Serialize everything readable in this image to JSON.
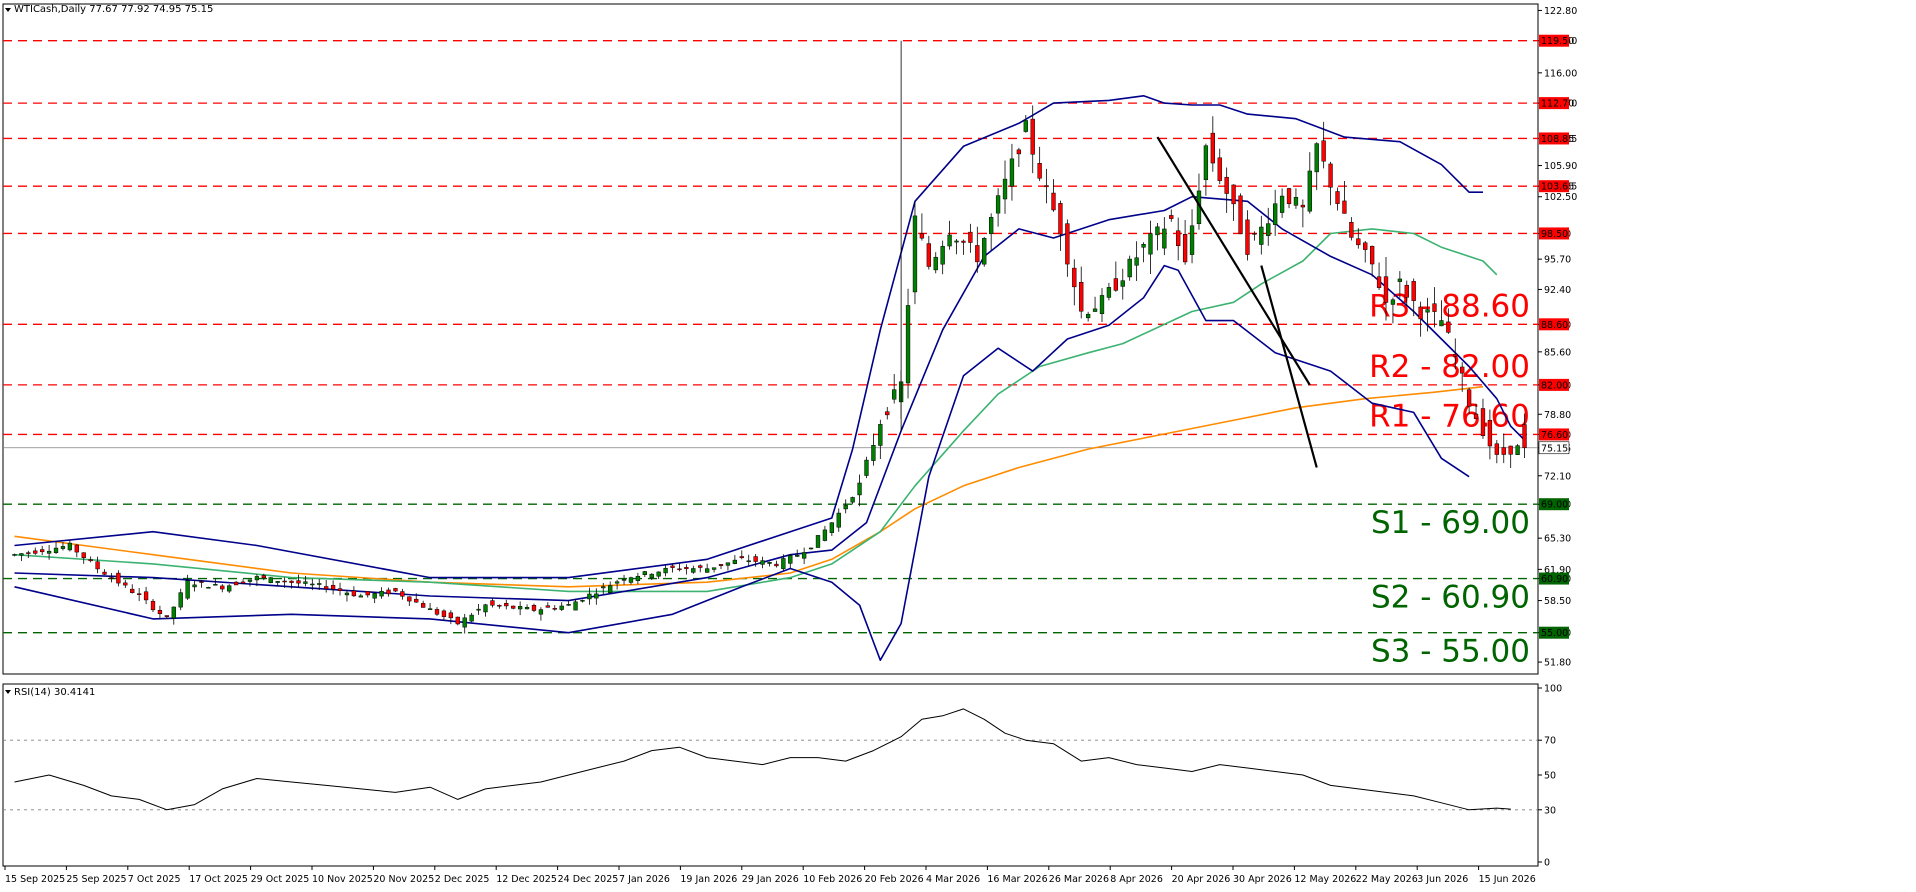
{
  "header": {
    "symbol": "WTICash,Daily",
    "ohlc": "77.67 77.92 74.95 75.15"
  },
  "rsi_header": "RSI(14) 30.4141",
  "colors": {
    "resistance": "#ff0000",
    "support": "#006400",
    "bollinger": "#00008b",
    "ma_green": "#3cb371",
    "ma_orange": "#ff8c00",
    "trendline": "#000000",
    "bull_candle": "#008000",
    "bear_candle": "#ff0000",
    "rsi_line": "#000000",
    "price_line": "#808080"
  },
  "chart_data": [
    {
      "type": "candlestick",
      "symbol": "WTICash",
      "timeframe": "Daily",
      "ylim": [
        50.5,
        123.5
      ],
      "y_ticks": [
        "122.80",
        "119.50",
        "116.00",
        "112.70",
        "108.85",
        "105.90",
        "103.65",
        "102.50",
        "98.50",
        "95.70",
        "92.40",
        "88.60",
        "85.60",
        "82.00",
        "78.80",
        "76.60",
        "75.15",
        "72.10",
        "69.00",
        "65.30",
        "61.90",
        "60.90",
        "58.50",
        "55.00",
        "51.80"
      ],
      "x_labels": [
        "15 Sep 2025",
        "25 Sep 2025",
        "7 Oct 2025",
        "17 Oct 2025",
        "29 Oct 2025",
        "10 Nov 2025",
        "20 Nov 2025",
        "2 Dec 2025",
        "12 Dec 2025",
        "24 Dec 2025",
        "7 Jan 2026",
        "19 Jan 2026",
        "29 Jan 2026",
        "10 Feb 2026",
        "20 Feb 2026",
        "4 Mar 2026",
        "16 Mar 2026",
        "26 Mar 2026",
        "8 Apr 2026",
        "20 Apr 2026",
        "30 Apr 2026",
        "12 May 2026",
        "22 May 2026",
        "3 Jun 2026",
        "15 Jun 2026"
      ],
      "last_price": "75.15",
      "levels": [
        {
          "name": "R3",
          "value": 88.6,
          "label": "R3 - 88.60",
          "tag": "88.60",
          "kind": "resistance"
        },
        {
          "name": "R2",
          "value": 82.0,
          "label": "R2 - 82.00",
          "tag": "82.00",
          "kind": "resistance"
        },
        {
          "name": "R1",
          "value": 76.6,
          "label": "R1 - 76.60",
          "tag": "76.60",
          "kind": "resistance"
        },
        {
          "name": "S1",
          "value": 69.0,
          "label": "S1 - 69.00",
          "tag": "69.00",
          "kind": "support"
        },
        {
          "name": "S2",
          "value": 60.9,
          "label": "S2 - 60.90",
          "tag": "60.90",
          "kind": "support"
        },
        {
          "name": "S3",
          "value": 55.0,
          "label": "S3 - 55.00",
          "tag": "55.00",
          "kind": "support"
        }
      ],
      "extra_levels": [
        {
          "value": 119.5,
          "tag": "119.50",
          "kind": "resistance"
        },
        {
          "value": 112.7,
          "tag": "112.70",
          "kind": "resistance"
        },
        {
          "value": 108.85,
          "tag": "108.85",
          "kind": "resistance"
        },
        {
          "value": 103.65,
          "tag": "103.65",
          "kind": "resistance"
        },
        {
          "value": 98.5,
          "tag": "98.50",
          "kind": "resistance"
        }
      ],
      "close_path": [
        [
          0,
          63.5
        ],
        [
          8,
          64.5
        ],
        [
          12,
          62.0
        ],
        [
          18,
          59.0
        ],
        [
          22,
          56.5
        ],
        [
          25,
          60.5
        ],
        [
          30,
          60.0
        ],
        [
          35,
          61.0
        ],
        [
          45,
          60.0
        ],
        [
          50,
          59.0
        ],
        [
          55,
          59.5
        ],
        [
          60,
          57.5
        ],
        [
          64,
          56.0
        ],
        [
          68,
          58.0
        ],
        [
          75,
          57.5
        ],
        [
          80,
          58.0
        ],
        [
          84,
          59.5
        ],
        [
          88,
          61.0
        ],
        [
          95,
          62.0
        ],
        [
          100,
          62.0
        ],
        [
          105,
          63.0
        ],
        [
          110,
          62.5
        ],
        [
          113,
          63.5
        ],
        [
          115,
          64.5
        ],
        [
          118,
          67.0
        ],
        [
          122,
          71.0
        ],
        [
          125,
          78.0
        ],
        [
          128,
          82.0
        ],
        [
          130,
          100.0
        ],
        [
          132,
          95.0
        ],
        [
          135,
          99.0
        ],
        [
          139,
          96.0
        ],
        [
          143,
          104.0
        ],
        [
          146,
          110.0
        ],
        [
          148,
          105.0
        ],
        [
          151,
          99.0
        ],
        [
          154,
          90.0
        ],
        [
          157,
          91.0
        ],
        [
          160,
          94.0
        ],
        [
          163,
          97.0
        ],
        [
          167,
          100.0
        ],
        [
          169,
          95.0
        ],
        [
          172,
          108.0
        ],
        [
          175,
          103.0
        ],
        [
          178,
          97.0
        ],
        [
          180,
          99.0
        ],
        [
          183,
          103.0
        ],
        [
          186,
          101.0
        ],
        [
          188,
          108.0
        ],
        [
          190,
          104.0
        ],
        [
          193,
          98.0
        ],
        [
          196,
          95.0
        ],
        [
          198,
          91.0
        ],
        [
          200,
          93.0
        ],
        [
          203,
          90.0
        ],
        [
          206,
          89.0
        ],
        [
          208,
          85.0
        ],
        [
          210,
          80.0
        ],
        [
          212,
          77.0
        ],
        [
          214,
          74.0
        ],
        [
          216,
          75.0
        ],
        [
          218,
          75.15
        ]
      ],
      "candle_count": 219,
      "bollinger_upper": [
        [
          0,
          64.5
        ],
        [
          20,
          66.0
        ],
        [
          35,
          64.5
        ],
        [
          60,
          61.0
        ],
        [
          80,
          61.0
        ],
        [
          100,
          63.0
        ],
        [
          112,
          66.0
        ],
        [
          118,
          67.5
        ],
        [
          121,
          75.0
        ],
        [
          125,
          88.0
        ],
        [
          130,
          102.0
        ],
        [
          137,
          108.0
        ],
        [
          145,
          110.5
        ],
        [
          150,
          112.7
        ],
        [
          158,
          113.0
        ],
        [
          163,
          113.5
        ],
        [
          166,
          112.7
        ],
        [
          170,
          112.5
        ],
        [
          174,
          112.5
        ],
        [
          178,
          111.5
        ],
        [
          185,
          111.0
        ],
        [
          192,
          109.0
        ],
        [
          200,
          108.5
        ],
        [
          206,
          106.0
        ],
        [
          210,
          103.0
        ],
        [
          212,
          103.0
        ]
      ],
      "bollinger_middle": [
        [
          0,
          61.5
        ],
        [
          20,
          61.0
        ],
        [
          40,
          60.0
        ],
        [
          60,
          59.0
        ],
        [
          80,
          58.5
        ],
        [
          100,
          61.0
        ],
        [
          112,
          63.5
        ],
        [
          118,
          64.0
        ],
        [
          123,
          67.0
        ],
        [
          128,
          77.0
        ],
        [
          134,
          88.0
        ],
        [
          140,
          96.0
        ],
        [
          145,
          99.0
        ],
        [
          150,
          98.0
        ],
        [
          158,
          100.0
        ],
        [
          166,
          101.0
        ],
        [
          170,
          102.5
        ],
        [
          178,
          102.0
        ],
        [
          183,
          99.0
        ],
        [
          190,
          96.0
        ],
        [
          196,
          94.0
        ],
        [
          202,
          90.0
        ],
        [
          206,
          87.0
        ],
        [
          210,
          84.0
        ],
        [
          214,
          80.5
        ],
        [
          216,
          77.5
        ],
        [
          218,
          76.0
        ]
      ],
      "bollinger_lower": [
        [
          0,
          60.0
        ],
        [
          20,
          56.5
        ],
        [
          40,
          57.0
        ],
        [
          60,
          56.5
        ],
        [
          80,
          55.0
        ],
        [
          95,
          57.0
        ],
        [
          105,
          60.0
        ],
        [
          112,
          62.0
        ],
        [
          118,
          60.5
        ],
        [
          122,
          58.0
        ],
        [
          124,
          54.0
        ],
        [
          125,
          52.0
        ],
        [
          128,
          56.0
        ],
        [
          132,
          72.0
        ],
        [
          137,
          83.0
        ],
        [
          142,
          86.0
        ],
        [
          147,
          83.5
        ],
        [
          152,
          87.0
        ],
        [
          158,
          88.5
        ],
        [
          163,
          91.5
        ],
        [
          166,
          95.0
        ],
        [
          168,
          94.5
        ],
        [
          172,
          89.0
        ],
        [
          176,
          89.0
        ],
        [
          182,
          85.5
        ],
        [
          190,
          83.5
        ],
        [
          196,
          80.0
        ],
        [
          202,
          79.0
        ],
        [
          206,
          74.0
        ],
        [
          210,
          72.0
        ]
      ],
      "ma_green": [
        [
          0,
          63.5
        ],
        [
          20,
          62.5
        ],
        [
          40,
          61.0
        ],
        [
          60,
          60.5
        ],
        [
          80,
          59.5
        ],
        [
          100,
          59.5
        ],
        [
          112,
          61.0
        ],
        [
          118,
          62.5
        ],
        [
          125,
          66.0
        ],
        [
          130,
          71.0
        ],
        [
          137,
          77.0
        ],
        [
          142,
          81.0
        ],
        [
          148,
          84.0
        ],
        [
          155,
          85.5
        ],
        [
          160,
          86.5
        ],
        [
          170,
          90.0
        ],
        [
          176,
          91.0
        ],
        [
          180,
          93.0
        ],
        [
          186,
          95.5
        ],
        [
          190,
          98.5
        ],
        [
          196,
          99.0
        ],
        [
          202,
          98.5
        ],
        [
          206,
          97.0
        ],
        [
          212,
          95.5
        ],
        [
          214,
          94.0
        ]
      ],
      "ma_orange": [
        [
          0,
          65.5
        ],
        [
          20,
          63.5
        ],
        [
          40,
          61.5
        ],
        [
          60,
          60.5
        ],
        [
          80,
          60.0
        ],
        [
          100,
          60.5
        ],
        [
          112,
          61.5
        ],
        [
          118,
          63.0
        ],
        [
          125,
          66.0
        ],
        [
          130,
          68.5
        ],
        [
          137,
          71.0
        ],
        [
          145,
          73.0
        ],
        [
          155,
          75.0
        ],
        [
          165,
          76.5
        ],
        [
          175,
          78.0
        ],
        [
          185,
          79.5
        ],
        [
          195,
          80.5
        ],
        [
          205,
          81.2
        ],
        [
          212,
          81.8
        ]
      ],
      "trendlines": [
        [
          [
            165,
            109.0
          ],
          [
            187,
            82.0
          ]
        ],
        [
          [
            180,
            95.0
          ],
          [
            188,
            73.0
          ]
        ]
      ]
    },
    {
      "type": "line",
      "name": "RSI(14)",
      "value": "30.4141",
      "ylim": [
        0,
        100
      ],
      "y_ticks": [
        "100",
        "70",
        "50",
        "30",
        "0"
      ],
      "values": [
        [
          0,
          46
        ],
        [
          5,
          50
        ],
        [
          10,
          44
        ],
        [
          14,
          38
        ],
        [
          18,
          36
        ],
        [
          22,
          30
        ],
        [
          26,
          33
        ],
        [
          30,
          42
        ],
        [
          35,
          48
        ],
        [
          40,
          46
        ],
        [
          45,
          44
        ],
        [
          50,
          42
        ],
        [
          55,
          40
        ],
        [
          60,
          43
        ],
        [
          64,
          36
        ],
        [
          68,
          42
        ],
        [
          72,
          44
        ],
        [
          76,
          46
        ],
        [
          80,
          50
        ],
        [
          84,
          54
        ],
        [
          88,
          58
        ],
        [
          92,
          64
        ],
        [
          96,
          66
        ],
        [
          100,
          60
        ],
        [
          104,
          58
        ],
        [
          108,
          56
        ],
        [
          112,
          60
        ],
        [
          116,
          60
        ],
        [
          120,
          58
        ],
        [
          124,
          64
        ],
        [
          128,
          72
        ],
        [
          131,
          82
        ],
        [
          134,
          84
        ],
        [
          137,
          88
        ],
        [
          140,
          82
        ],
        [
          143,
          74
        ],
        [
          146,
          70
        ],
        [
          150,
          68
        ],
        [
          154,
          58
        ],
        [
          158,
          60
        ],
        [
          162,
          56
        ],
        [
          166,
          54
        ],
        [
          170,
          52
        ],
        [
          174,
          56
        ],
        [
          178,
          54
        ],
        [
          182,
          52
        ],
        [
          186,
          50
        ],
        [
          190,
          44
        ],
        [
          194,
          42
        ],
        [
          198,
          40
        ],
        [
          202,
          38
        ],
        [
          206,
          34
        ],
        [
          210,
          30
        ],
        [
          214,
          31
        ],
        [
          216,
          30.4
        ]
      ]
    }
  ]
}
